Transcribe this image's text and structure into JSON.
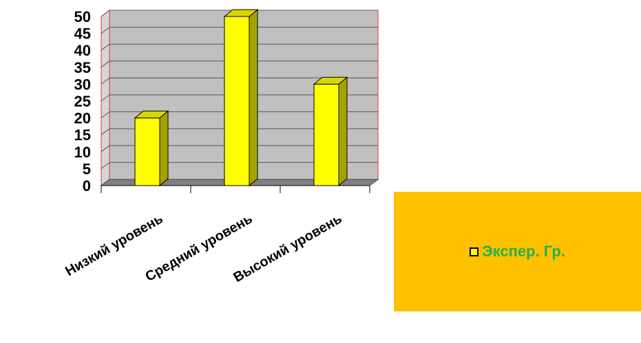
{
  "chart_data": {
    "type": "bar",
    "categories": [
      "Низкий уровень",
      "Средний уровень",
      "Высокий уровень"
    ],
    "series": [
      {
        "name": "Экспер. Гр.",
        "values": [
          20,
          50,
          30
        ]
      }
    ],
    "ylim": [
      0,
      50
    ],
    "yticks": [
      "0",
      "5",
      "10",
      "15",
      "20",
      "25",
      "30",
      "35",
      "40",
      "45",
      "50"
    ],
    "grid": true,
    "legend_position": "right",
    "colors": {
      "bar_front": "#FFFF00",
      "bar_side": "#A3A300",
      "bar_top": "#D8D800",
      "plot_back": "#C0C0C0",
      "plot_wall": "#D6D6D6",
      "floor": "#808080",
      "legend_bg": "#FFC000",
      "legend_text": "#22B14C",
      "axis_accent": "#E03030"
    }
  }
}
